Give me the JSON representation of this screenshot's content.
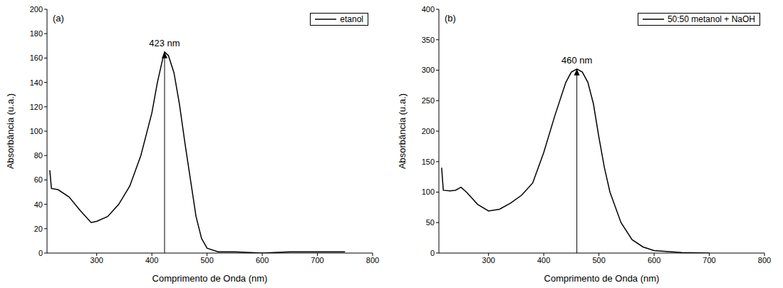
{
  "chart_data": [
    {
      "type": "line",
      "panel": "(a)",
      "x_label": "Comprimento de Onda (nm)",
      "y_label": "Absorbância (u.a.)",
      "xlim": [
        210,
        800
      ],
      "xticks": [
        300,
        400,
        500,
        600,
        700,
        800
      ],
      "ylim": [
        0,
        200
      ],
      "yticks": [
        0,
        20,
        40,
        60,
        80,
        100,
        120,
        140,
        160,
        180,
        200
      ],
      "legend": "upper right",
      "annotations": [
        {
          "text": "423 nm",
          "x": 423,
          "y": 165
        }
      ],
      "series": [
        {
          "name": "etanol",
          "color": "#000000",
          "x": [
            215,
            218,
            230,
            250,
            270,
            290,
            300,
            320,
            340,
            360,
            380,
            400,
            410,
            420,
            423,
            430,
            440,
            450,
            460,
            470,
            480,
            490,
            500,
            520,
            550,
            600,
            650,
            700,
            750
          ],
          "values": [
            68,
            53,
            52,
            46,
            35,
            25,
            26,
            30,
            40,
            55,
            80,
            115,
            140,
            160,
            165,
            162,
            148,
            122,
            90,
            60,
            30,
            12,
            4,
            1,
            1,
            0,
            1,
            1,
            1
          ]
        }
      ]
    },
    {
      "type": "line",
      "panel": "(b)",
      "x_label": "Comprimento de Onda (nm)",
      "y_label": "Absorbância (u.a.)",
      "xlim": [
        210,
        800
      ],
      "xticks": [
        300,
        400,
        500,
        600,
        700,
        800
      ],
      "ylim": [
        0,
        400
      ],
      "yticks": [
        0,
        50,
        100,
        150,
        200,
        250,
        300,
        350,
        400
      ],
      "legend": "upper right",
      "annotations": [
        {
          "text": "460 nm",
          "x": 460,
          "y": 302
        }
      ],
      "series": [
        {
          "name": "50:50 metanol + NaOH",
          "color": "#000000",
          "x": [
            215,
            218,
            230,
            240,
            250,
            260,
            270,
            280,
            300,
            320,
            340,
            360,
            380,
            400,
            420,
            440,
            450,
            460,
            470,
            480,
            490,
            500,
            510,
            520,
            540,
            560,
            580,
            600,
            650,
            700
          ],
          "values": [
            140,
            103,
            102,
            103,
            108,
            100,
            90,
            80,
            69,
            72,
            82,
            95,
            115,
            165,
            225,
            280,
            297,
            302,
            297,
            280,
            245,
            190,
            140,
            100,
            50,
            22,
            10,
            4,
            1,
            0
          ]
        }
      ]
    }
  ]
}
